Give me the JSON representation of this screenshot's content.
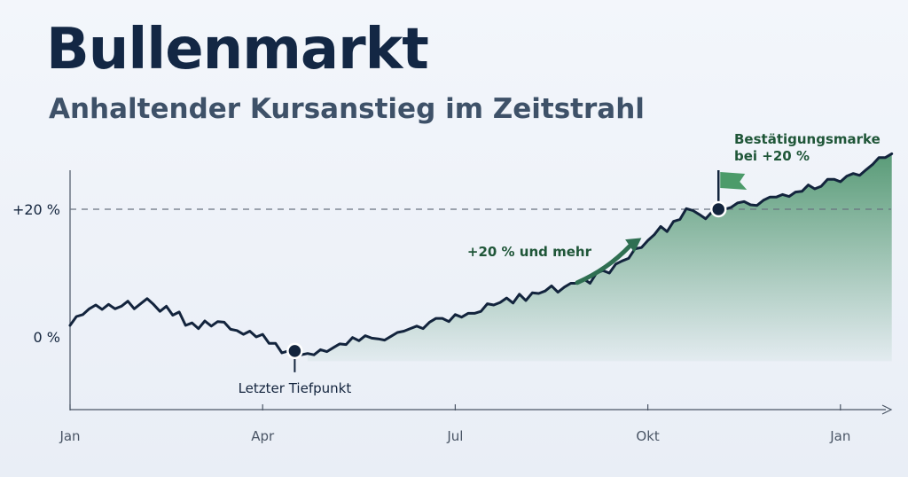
{
  "header": {
    "title": "Bullenmarkt",
    "subtitle": "Anhaltender Kursanstieg im Zeitstrahl"
  },
  "colors": {
    "line": "#13243d",
    "area": "#3f8c61",
    "arrow": "#2f6f52",
    "flag": "#4c9b6a",
    "text": "#13243d",
    "annotation": "#1f5638",
    "axis": "#4a5565",
    "reference": "#6a7280"
  },
  "chart_data": {
    "type": "line",
    "title": "Bullenmarkt",
    "subtitle": "Anhaltender Kursanstieg im Zeitstrahl",
    "xlabel": "",
    "ylabel": "",
    "x_unit": "month",
    "x_ticks": [
      {
        "x": 0,
        "label": "Jan"
      },
      {
        "x": 3,
        "label": "Apr"
      },
      {
        "x": 6,
        "label": "Jul"
      },
      {
        "x": 9,
        "label": "Okt"
      },
      {
        "x": 12,
        "label": "Jan"
      }
    ],
    "y_ticks": [
      {
        "y": 0,
        "label": "0 %"
      },
      {
        "y": 20,
        "label": "+20 %"
      }
    ],
    "xlim": [
      0,
      12.8
    ],
    "ylim": [
      -11,
      29
    ],
    "grid": false,
    "legend": "none",
    "reference_line": {
      "y": 20,
      "style": "dashed"
    },
    "series": [
      {
        "x": [
          0,
          0.1,
          0.2,
          0.3,
          0.4,
          0.5,
          0.6,
          0.7,
          0.8,
          0.9,
          1,
          1.1,
          1.2,
          1.3,
          1.4,
          1.5,
          1.6,
          1.7,
          1.8,
          1.9,
          2,
          2.1,
          2.2,
          2.3,
          2.4,
          2.5,
          2.6,
          2.7,
          2.8,
          2.9,
          3,
          3.1,
          3.2,
          3.3,
          3.4,
          3.5,
          3.6,
          3.7,
          3.8,
          3.9,
          4,
          4.1,
          4.2,
          4.3,
          4.4,
          4.5,
          4.6,
          4.7,
          4.8,
          4.9,
          5,
          5.1,
          5.2,
          5.3,
          5.4,
          5.5,
          5.6,
          5.7,
          5.8,
          5.9,
          6,
          6.1,
          6.2,
          6.3,
          6.4,
          6.5,
          6.6,
          6.7,
          6.8,
          6.9,
          7,
          7.1,
          7.2,
          7.3,
          7.4,
          7.5,
          7.6,
          7.7,
          7.8,
          7.9,
          8,
          8.1,
          8.2,
          8.3,
          8.4,
          8.5,
          8.6,
          8.7,
          8.8,
          8.9,
          9,
          9.1,
          9.2,
          9.3,
          9.4,
          9.5,
          9.6,
          9.7,
          9.8,
          9.9,
          10,
          10.1,
          10.2,
          10.3,
          10.4,
          10.5,
          10.6,
          10.7,
          10.8,
          10.9,
          11,
          11.1,
          11.2,
          11.3,
          11.4,
          11.5,
          11.6,
          11.7,
          11.8,
          11.9,
          12,
          12.1,
          12.2,
          12.3,
          12.4,
          12.5,
          12.6,
          12.7,
          12.8
        ],
        "values": [
          1.8,
          3.2,
          3.5,
          4.4,
          5.0,
          4.3,
          5.1,
          4.4,
          4.8,
          5.6,
          4.4,
          5.2,
          6.0,
          5.1,
          4.0,
          4.8,
          3.4,
          3.9,
          1.8,
          2.2,
          1.3,
          2.5,
          1.7,
          2.4,
          2.3,
          1.2,
          1.0,
          0.4,
          0.9,
          0.0,
          0.4,
          -1.0,
          -1.0,
          -2.5,
          -2.2,
          -2.2,
          -2.8,
          -2.6,
          -2.8,
          -2.0,
          -2.3,
          -1.7,
          -1.1,
          -1.2,
          -0.1,
          -0.6,
          0.2,
          -0.2,
          -0.3,
          -0.5,
          0.1,
          0.7,
          0.9,
          1.3,
          1.7,
          1.3,
          2.3,
          2.9,
          2.9,
          2.4,
          3.5,
          3.1,
          3.7,
          3.7,
          4.0,
          5.2,
          5.0,
          5.4,
          6.1,
          5.3,
          6.7,
          5.7,
          6.9,
          6.8,
          7.2,
          8.0,
          7.0,
          7.8,
          8.4,
          8.4,
          9.1,
          8.4,
          10.0,
          10.4,
          10.0,
          11.4,
          11.9,
          12.3,
          13.8,
          14.0,
          15.1,
          16.0,
          17.3,
          16.5,
          18.1,
          18.4,
          20.1,
          19.8,
          19.2,
          18.5,
          19.6,
          20.1,
          20.0,
          20.3,
          21.0,
          21.2,
          20.7,
          20.6,
          21.4,
          21.9,
          21.9,
          22.3,
          22.0,
          22.7,
          22.8,
          23.8,
          23.2,
          23.6,
          24.7,
          24.7,
          24.3,
          25.2,
          25.6,
          25.3,
          26.2,
          27.0,
          28.1,
          28.1,
          28.7
        ]
      }
    ],
    "shaded_region": {
      "from_x": 3.7,
      "to_x": 12.8
    },
    "annotations": [
      {
        "type": "point",
        "x": 3.5,
        "y": -2.2,
        "label": "Letzter Tiefpunkt",
        "label_position": "below"
      },
      {
        "type": "arrow",
        "from_x": 7.9,
        "from_y": 8.5,
        "to_x": 8.9,
        "to_y": 15.5,
        "label": "+20 % und mehr"
      },
      {
        "type": "flag",
        "x": 10.1,
        "y": 20.0,
        "label_lines": [
          "Bestätigungsmarke",
          "bei +20 %"
        ]
      }
    ]
  }
}
